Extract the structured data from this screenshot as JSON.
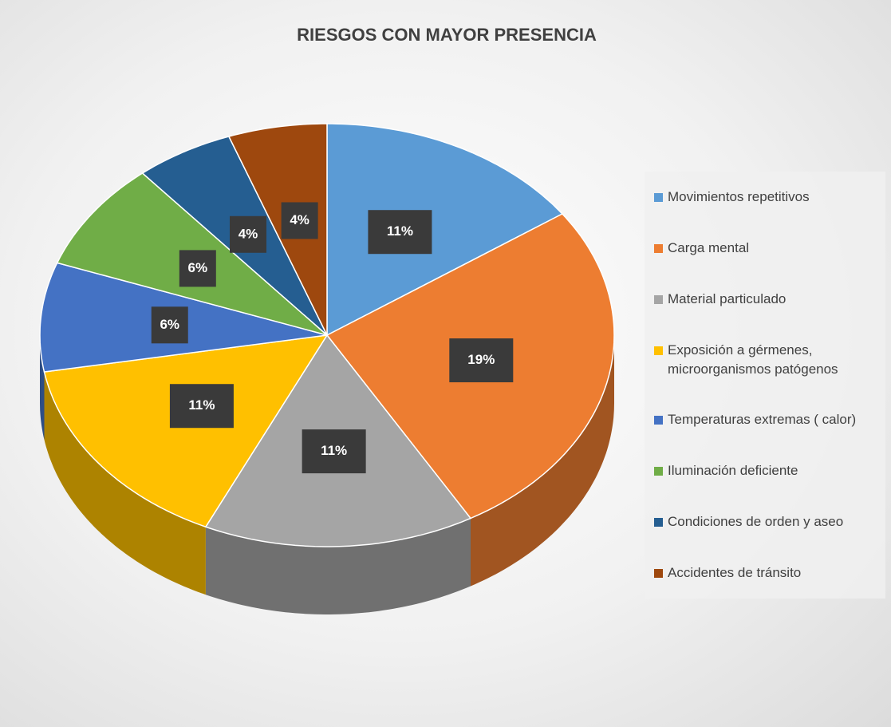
{
  "chart_data": {
    "type": "pie3d",
    "title": "RIESGOS CON MAYOR PRESENCIA",
    "categories": [
      "Movimientos repetitivos",
      "Carga mental",
      "Material particulado",
      "Exposición a gérmenes, microorganismos patógenos",
      "Temperaturas extremas ( calor)",
      "Iluminación deficiente",
      "Condiciones de orden y aseo",
      "Accidentes de tránsito"
    ],
    "values": [
      11,
      19,
      11,
      11,
      6,
      6,
      4,
      4
    ],
    "value_labels": [
      "11%",
      "19%",
      "11%",
      "11%",
      "6%",
      "6%",
      "4%",
      "4%"
    ],
    "colors": [
      "#5b9bd5",
      "#ed7d31",
      "#a5a5a5",
      "#ffc000",
      "#4472c4",
      "#70ad47",
      "#255e91",
      "#9e480e"
    ],
    "legend": "right"
  }
}
